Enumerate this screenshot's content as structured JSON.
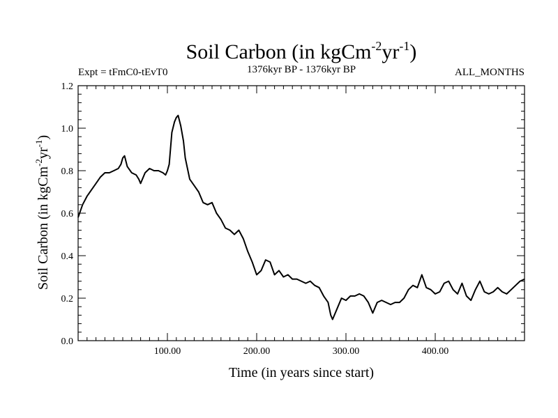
{
  "chart_data": {
    "type": "line",
    "title": {
      "prefix": "Soil Carbon (in kgCm",
      "exp1": "-2",
      "mid": "yr",
      "exp2": "-1",
      "suffix": ")"
    },
    "subtitle_left": "Expt = tFmC0-tEvT0",
    "subtitle_center": "1376kyr BP - 1376kyr BP",
    "subtitle_right": "ALL_MONTHS",
    "xlabel": "Time (in years since start)",
    "ylabel": {
      "prefix": "Soil Carbon (in kgCm",
      "exp1": "-2",
      "mid": "yr",
      "exp2": "-1",
      "suffix": ")"
    },
    "xlim": [
      0,
      500
    ],
    "ylim": [
      0,
      1.2
    ],
    "x_ticks": [
      100,
      200,
      300,
      400
    ],
    "x_tick_labels": [
      "100.00",
      "200.00",
      "300.00",
      "400.00"
    ],
    "y_ticks": [
      0,
      0.2,
      0.4,
      0.6,
      0.8,
      1.0,
      1.2
    ],
    "y_tick_labels": [
      "0.0",
      "0.2",
      "0.4",
      "0.6",
      "0.8",
      "1.0",
      "1.2"
    ],
    "series": [
      {
        "name": "Soil Carbon",
        "color": "#000000",
        "x": [
          0,
          5,
          10,
          15,
          20,
          25,
          30,
          35,
          40,
          45,
          48,
          50,
          52,
          55,
          60,
          65,
          68,
          70,
          75,
          80,
          85,
          90,
          95,
          98,
          100,
          102,
          105,
          108,
          110,
          112,
          115,
          118,
          120,
          125,
          130,
          135,
          140,
          145,
          150,
          155,
          160,
          165,
          170,
          175,
          180,
          185,
          190,
          195,
          200,
          205,
          210,
          215,
          220,
          225,
          230,
          235,
          240,
          245,
          250,
          255,
          260,
          265,
          270,
          275,
          280,
          283,
          285,
          290,
          295,
          300,
          305,
          310,
          315,
          320,
          325,
          330,
          335,
          340,
          345,
          350,
          355,
          360,
          365,
          370,
          375,
          380,
          385,
          390,
          395,
          400,
          405,
          410,
          415,
          420,
          425,
          430,
          435,
          440,
          445,
          450,
          455,
          460,
          465,
          470,
          475,
          480,
          485,
          490,
          495,
          500
        ],
        "values": [
          0.58,
          0.64,
          0.68,
          0.71,
          0.74,
          0.77,
          0.79,
          0.79,
          0.8,
          0.81,
          0.83,
          0.86,
          0.87,
          0.82,
          0.79,
          0.78,
          0.76,
          0.74,
          0.79,
          0.81,
          0.8,
          0.8,
          0.79,
          0.78,
          0.8,
          0.83,
          0.98,
          1.03,
          1.05,
          1.06,
          1.01,
          0.94,
          0.86,
          0.76,
          0.73,
          0.7,
          0.65,
          0.64,
          0.65,
          0.6,
          0.57,
          0.53,
          0.52,
          0.5,
          0.52,
          0.48,
          0.42,
          0.37,
          0.31,
          0.33,
          0.38,
          0.37,
          0.31,
          0.33,
          0.3,
          0.31,
          0.29,
          0.29,
          0.28,
          0.27,
          0.28,
          0.26,
          0.25,
          0.21,
          0.18,
          0.12,
          0.1,
          0.15,
          0.2,
          0.19,
          0.21,
          0.21,
          0.22,
          0.21,
          0.18,
          0.13,
          0.18,
          0.19,
          0.18,
          0.17,
          0.18,
          0.18,
          0.2,
          0.24,
          0.26,
          0.25,
          0.31,
          0.25,
          0.24,
          0.22,
          0.23,
          0.27,
          0.28,
          0.24,
          0.22,
          0.27,
          0.21,
          0.19,
          0.24,
          0.28,
          0.23,
          0.22,
          0.23,
          0.25,
          0.23,
          0.22,
          0.24,
          0.26,
          0.28,
          0.29
        ]
      }
    ]
  }
}
